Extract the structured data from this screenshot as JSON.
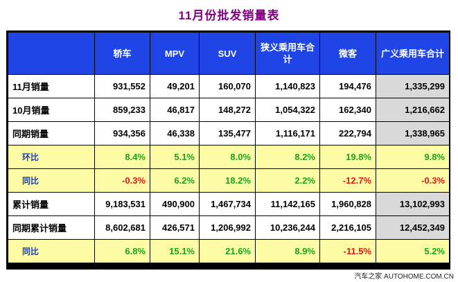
{
  "title": "11月份批发销量表",
  "columns": [
    "",
    "轿车",
    "MPV",
    "SUV",
    "狭义乘用车合计",
    "微客",
    "广义乘用车合计"
  ],
  "rows": [
    {
      "label": "11月销量",
      "type": "abs",
      "values": [
        "931,552",
        "49,201",
        "160,070",
        "1,140,823",
        "194,476",
        "1,335,299"
      ]
    },
    {
      "label": "10月销量",
      "type": "abs",
      "values": [
        "859,233",
        "46,817",
        "148,272",
        "1,054,322",
        "162,340",
        "1,216,662"
      ]
    },
    {
      "label": "同期销量",
      "type": "abs",
      "values": [
        "934,356",
        "46,338",
        "135,477",
        "1,116,171",
        "222,794",
        "1,338,965"
      ]
    },
    {
      "label": "环比",
      "type": "ratio",
      "values": [
        "8.4%",
        "5.1%",
        "8.0%",
        "8.2%",
        "19.8%",
        "9.8%"
      ]
    },
    {
      "label": "同比",
      "type": "ratio",
      "values": [
        "-0.3%",
        "6.2%",
        "18.2%",
        "2.2%",
        "-12.7%",
        "-0.3%"
      ]
    },
    {
      "label": "累计销量",
      "type": "abs",
      "values": [
        "9,183,531",
        "490,900",
        "1,467,734",
        "11,142,165",
        "1,960,828",
        "13,102,993"
      ]
    },
    {
      "label": "同期累计销量",
      "type": "abs",
      "values": [
        "8,602,681",
        "426,571",
        "1,206,992",
        "10,236,244",
        "2,216,105",
        "12,452,349"
      ]
    },
    {
      "label": "同比",
      "type": "ratio",
      "values": [
        "6.8%",
        "15.1%",
        "21.6%",
        "8.9%",
        "-11.5%",
        "5.2%"
      ]
    }
  ],
  "colors": {
    "header_bg": "#1f45e6",
    "ratio_bg": "#fdfca4",
    "total_bg": "#d9d9d9",
    "positive": "#1aa31a",
    "negative": "#e01818",
    "title": "#800080"
  },
  "footer": "汽车之家 AUTOHOME.COM.CN"
}
